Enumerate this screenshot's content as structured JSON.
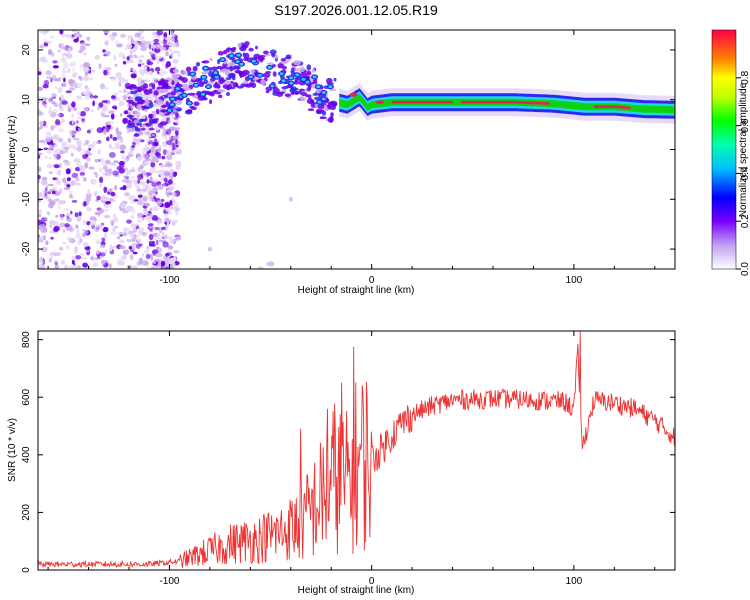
{
  "title": "S197.2026.001.12.05.R19",
  "colors": {
    "snr_line": "#ee3333",
    "track_core": "#e0235a",
    "track_mid": "#10d010",
    "track_outer": "#1ed6e8",
    "track_edge": "#2a2aee",
    "scatter_strong": "#6a00e6",
    "scatter_weak": "#c9a6ee",
    "scatter_faint": "#e6d6f6"
  },
  "chart_data": [
    {
      "type": "heatmap",
      "name": "spectrogram",
      "xlabel": "Height of straight line (km)",
      "ylabel": "Frequency (Hz)",
      "xlim": [
        -165,
        150
      ],
      "ylim": [
        -24,
        24
      ],
      "xticks": [
        -100,
        0,
        100
      ],
      "yticks": [
        -20,
        -10,
        0,
        10,
        20
      ],
      "grid": false,
      "colorbar": {
        "label": "Normalized spectral amplitude",
        "range": [
          0,
          1
        ],
        "ticks": [
          0.0,
          0.2,
          0.4,
          0.6,
          0.8
        ]
      },
      "noise_region_x": [
        -165,
        -100
      ],
      "tone_track": {
        "x": [
          -120,
          -105,
          -95,
          -85,
          -75,
          -62,
          -52,
          -42,
          -32,
          -22,
          -12,
          -6,
          -2,
          0,
          10,
          30,
          50,
          70,
          90,
          105,
          120,
          135,
          148
        ],
        "y": [
          8,
          9,
          11,
          13,
          15,
          17,
          16,
          15,
          13,
          10,
          9,
          10.5,
          8.5,
          9,
          9.5,
          9.5,
          9.5,
          9.5,
          9.2,
          8.6,
          8.6,
          8.1,
          8
        ],
        "amplitude": [
          0.3,
          0.4,
          0.45,
          0.5,
          0.5,
          0.5,
          0.45,
          0.45,
          0.45,
          0.5,
          0.7,
          0.85,
          0.8,
          0.85,
          0.85,
          0.85,
          0.85,
          0.85,
          0.85,
          0.8,
          0.85,
          0.8,
          0.7
        ]
      }
    },
    {
      "type": "line",
      "name": "snr",
      "xlabel": "Height of straight line (km)",
      "ylabel": "SNR (10 * v/v)",
      "xlim": [
        -165,
        150
      ],
      "ylim": [
        0,
        830
      ],
      "xticks": [
        -100,
        0,
        100
      ],
      "yticks": [
        0,
        200,
        400,
        600,
        800
      ],
      "grid": false,
      "series": [
        {
          "name": "SNR",
          "x": [
            -165,
            -140,
            -110,
            -95,
            -85,
            -70,
            -55,
            -45,
            -35,
            -25,
            -18,
            -12,
            -8,
            -4,
            0,
            5,
            10,
            15,
            20,
            30,
            40,
            60,
            80,
            95,
            100,
            102,
            104,
            110,
            120,
            130,
            140,
            150
          ],
          "y": [
            20,
            20,
            20,
            30,
            55,
            90,
            110,
            130,
            160,
            250,
            330,
            300,
            360,
            390,
            380,
            420,
            470,
            510,
            540,
            570,
            590,
            595,
            590,
            585,
            560,
            760,
            420,
            590,
            580,
            560,
            520,
            460
          ]
        }
      ],
      "spikes": [
        {
          "x": 103,
          "y": 830
        },
        {
          "x": -9,
          "y": 775
        },
        {
          "x": -15,
          "y": 650
        },
        {
          "x": -22,
          "y": 560
        },
        {
          "x": -35,
          "y": 490
        }
      ]
    }
  ]
}
